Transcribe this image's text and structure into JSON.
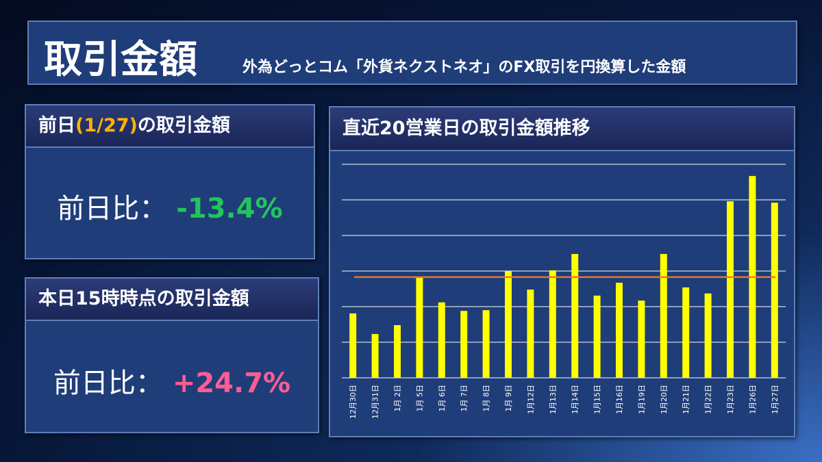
{
  "header": {
    "title": "取引金額",
    "subtitle": "外為どっとコム「外貨ネクストネオ」のFX取引を円換算した金額"
  },
  "panels": [
    {
      "title_parts": [
        "前日",
        "(1/27)",
        "の取引金額"
      ],
      "label": "前日比：",
      "value": "-13.4%"
    },
    {
      "title_parts": [
        "本日15時時点の取引金額"
      ],
      "label": "前日比：",
      "value": "+24.7%"
    }
  ],
  "chart_data": {
    "type": "bar",
    "title": "直近20営業日の取引金額推移",
    "categories": [
      "12月30日",
      "12月31日",
      "1月 2日",
      "1月 5日",
      "1月 6日",
      "1月 7日",
      "1月 8日",
      "1月 9日",
      "1月12日",
      "1月13日",
      "1月14日",
      "1月15日",
      "1月16日",
      "1月19日",
      "1月20日",
      "1月21日",
      "1月22日",
      "1月23日",
      "1月26日",
      "1月27日"
    ],
    "values": [
      1.81,
      1.23,
      1.48,
      2.81,
      2.12,
      1.88,
      1.9,
      3.0,
      2.48,
      3.02,
      3.48,
      2.31,
      2.67,
      2.17,
      3.48,
      2.54,
      2.37,
      4.96,
      5.67,
      4.92
    ],
    "color": "#ffff00",
    "reference_line": {
      "value": 2.83,
      "color": "#e87722"
    },
    "ylim": [
      0,
      6
    ],
    "yticks": [
      0,
      1,
      2,
      3,
      4,
      5,
      6
    ],
    "grid": true,
    "show_tick_labels": false
  }
}
